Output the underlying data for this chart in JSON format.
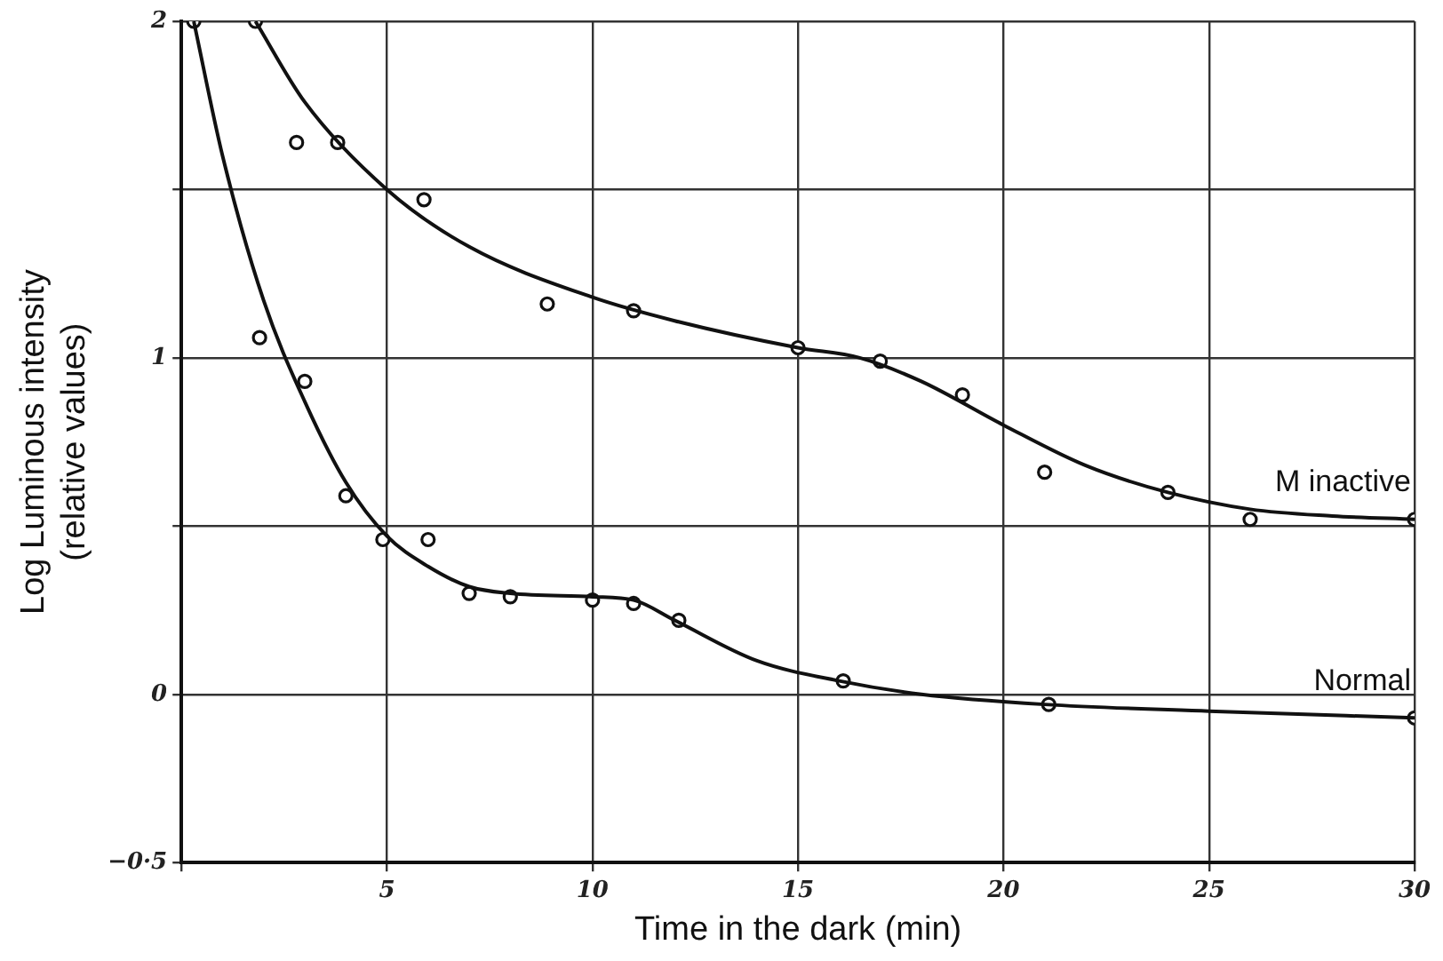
{
  "chart_data": {
    "type": "line",
    "xlabel": "Time in the dark (min)",
    "ylabel": "Log Luminous intensity\n(relative values)",
    "xlim": [
      0,
      30
    ],
    "xticks": [
      {
        "value": 0,
        "label": null
      },
      5,
      10,
      15,
      20,
      25,
      30
    ],
    "ylim": [
      -0.5,
      2
    ],
    "yticks": [
      {
        "value": -0.5,
        "label": "−0·5"
      },
      0,
      {
        "value": 0.5,
        "label": null
      },
      1,
      {
        "value": 1.5,
        "label": null
      },
      2
    ],
    "grid": true,
    "legend": false,
    "series": [
      {
        "name": "M inactive",
        "color": "#111111",
        "marker": "none",
        "line_style": "solid",
        "x": [
          1.8,
          3,
          5,
          7,
          10,
          12,
          15,
          16.5,
          18,
          20,
          22,
          24,
          26,
          28,
          30
        ],
        "values": [
          2,
          1.76,
          1.5,
          1.33,
          1.18,
          1.11,
          1.03,
          1.0,
          0.93,
          0.8,
          0.68,
          0.6,
          0.55,
          0.53,
          0.52
        ]
      },
      {
        "name": "Normal",
        "color": "#111111",
        "marker": "none",
        "line_style": "solid",
        "x": [
          0.3,
          1,
          2,
          3,
          4,
          5,
          6,
          7,
          8,
          10,
          11,
          12,
          14,
          16,
          18,
          21,
          25,
          30
        ],
        "values": [
          2,
          1.6,
          1.17,
          0.87,
          0.63,
          0.47,
          0.38,
          0.32,
          0.3,
          0.29,
          0.28,
          0.22,
          0.1,
          0.04,
          0.0,
          -0.03,
          -0.05,
          -0.07
        ]
      },
      {
        "type": "scatter",
        "color": "#111111",
        "marker": "circle",
        "x": [
          1.8,
          2.8,
          3.8,
          5.9,
          8.9,
          11,
          15,
          17,
          19,
          21,
          24,
          26,
          30
        ],
        "values": [
          2,
          1.64,
          1.64,
          1.47,
          1.16,
          1.14,
          1.03,
          0.99,
          0.89,
          0.66,
          0.6,
          0.52,
          0.52
        ]
      },
      {
        "type": "scatter",
        "color": "#111111",
        "marker": "circle",
        "x": [
          0.3,
          1.9,
          3,
          4,
          4.9,
          6,
          7,
          8,
          10,
          11,
          12.1,
          16.1,
          21.1,
          30
        ],
        "values": [
          2,
          1.06,
          0.93,
          0.59,
          0.46,
          0.46,
          0.3,
          0.29,
          0.28,
          0.27,
          0.22,
          0.04,
          -0.03,
          -0.07
        ]
      }
    ]
  }
}
